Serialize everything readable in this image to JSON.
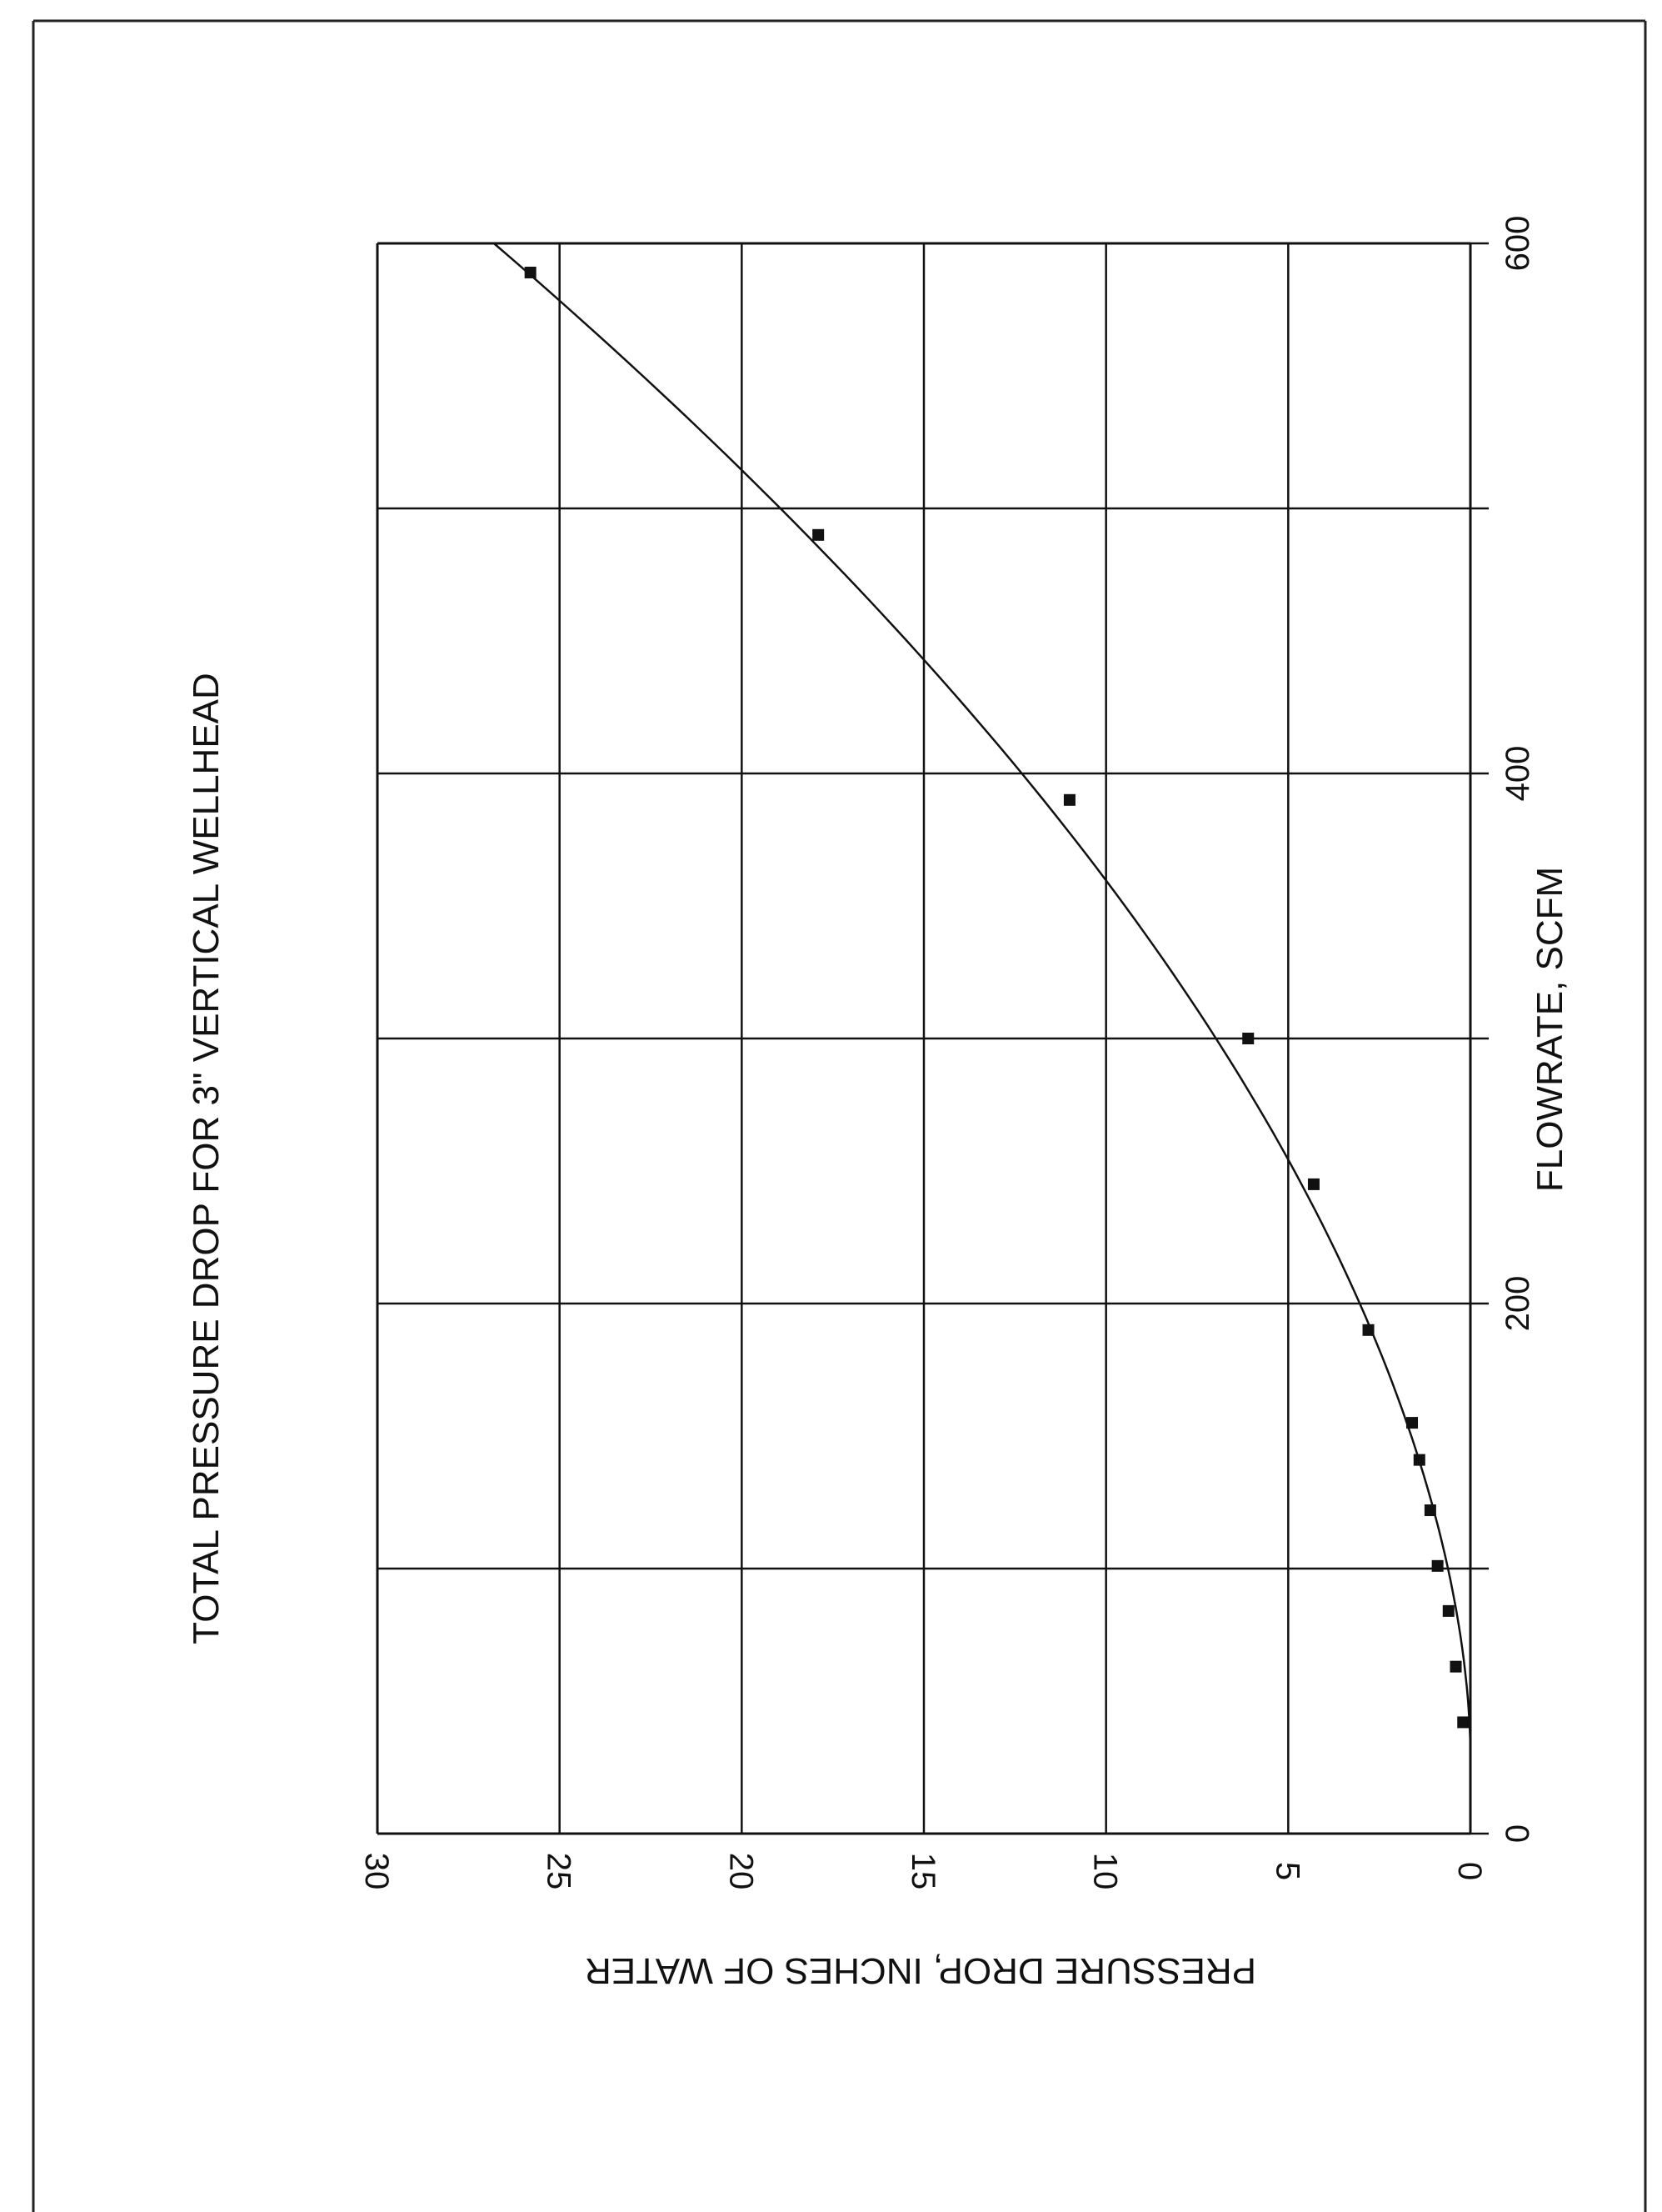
{
  "chart_data": {
    "type": "line",
    "title": "TOTAL PRESSURE DROP FOR 3\" VERTICAL WELLHEAD",
    "xlabel": "FLOWRATE, SCFM",
    "ylabel": "PRESSURE DROP, INCHES OF WATER",
    "xlim": [
      0,
      600
    ],
    "ylim": [
      0,
      30
    ],
    "x_ticks": [
      "0",
      "200",
      "400",
      "600"
    ],
    "y_ticks": [
      "0",
      "5",
      "10",
      "15",
      "20",
      "25",
      "30"
    ],
    "grid": true,
    "orientation": "rotated 90 degrees counter-clockwise",
    "series": [
      {
        "marker": "square",
        "x": [
          42,
          63,
          84,
          101,
          122,
          141,
          155,
          190,
          245,
          300,
          390,
          490,
          589
        ],
        "y": [
          0.2,
          0.4,
          0.6,
          0.9,
          1.1,
          1.4,
          1.6,
          2.8,
          4.3,
          6.1,
          11.0,
          17.9,
          25.8
        ]
      }
    ]
  },
  "colors": {
    "ink": "#111111",
    "background": "#ffffff"
  }
}
